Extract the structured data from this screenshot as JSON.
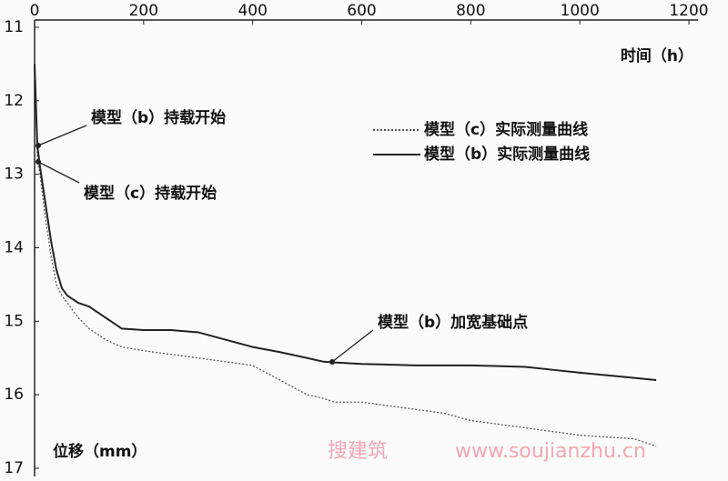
{
  "chart_data": {
    "type": "line",
    "x_label": "时间（h）",
    "y_label": "位移（mm）",
    "x": [
      0,
      5,
      10,
      20,
      30,
      40,
      50,
      60,
      70,
      80,
      100,
      130,
      160,
      200,
      250,
      300,
      350,
      400,
      450,
      500,
      530,
      550,
      600,
      650,
      700,
      750,
      800,
      850,
      900,
      950,
      1000,
      1100,
      1140
    ],
    "series": [
      {
        "name": "模型（c）实际测量曲线",
        "color": "#555",
        "line_style": "dotted",
        "values": [
          11.5,
          12.8,
          13.0,
          13.6,
          14.1,
          14.5,
          14.65,
          14.75,
          14.85,
          14.95,
          15.1,
          15.25,
          15.35,
          15.4,
          15.45,
          15.5,
          15.55,
          15.6,
          15.8,
          16.0,
          16.05,
          16.1,
          16.1,
          16.15,
          16.2,
          16.25,
          16.35,
          16.4,
          16.45,
          16.5,
          16.55,
          16.6,
          16.7
        ]
      },
      {
        "name": "模型（b）实际测量曲线",
        "color": "#222",
        "line_style": "solid",
        "values": [
          11.5,
          12.6,
          12.9,
          13.4,
          13.9,
          14.3,
          14.55,
          14.65,
          14.7,
          14.75,
          14.8,
          14.95,
          15.1,
          15.12,
          15.12,
          15.15,
          15.25,
          15.35,
          15.42,
          15.5,
          15.55,
          15.56,
          15.58,
          15.59,
          15.6,
          15.6,
          15.6,
          15.61,
          15.62,
          15.66,
          15.7,
          15.77,
          15.8
        ]
      }
    ],
    "xlim": [
      0,
      1200
    ],
    "xticks": [
      0,
      200,
      400,
      600,
      800,
      1000,
      1200
    ],
    "ylim": [
      11,
      17
    ],
    "yticks": [
      11,
      12,
      13,
      14,
      15,
      16,
      17
    ],
    "y_inverted": true,
    "grid": false,
    "annotations": [
      "模型（b）持载开始",
      "模型（c）持载开始",
      "模型（b）加宽基础点"
    ],
    "watermark": [
      "搜建筑",
      "www.soujianzhu.cn"
    ]
  }
}
